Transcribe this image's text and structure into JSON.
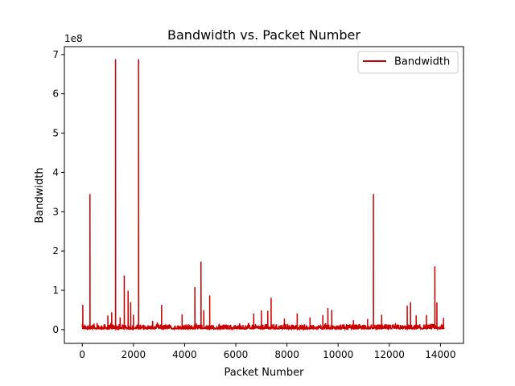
{
  "chart_data": {
    "type": "line",
    "title": "Bandwidth vs. Packet Number",
    "xlabel": "Packet Number",
    "ylabel": "Bandwidth",
    "y_offset_label": "1e8",
    "y_scale_factor": 100000000,
    "xlim": [
      -700,
      14900
    ],
    "ylim": [
      -0.35,
      7.2
    ],
    "x_ticks": [
      0,
      2000,
      4000,
      6000,
      8000,
      10000,
      12000,
      14000
    ],
    "x_tick_labels": [
      "0",
      "2000",
      "4000",
      "6000",
      "8000",
      "10000",
      "12000",
      "14000"
    ],
    "y_ticks": [
      0,
      1,
      2,
      3,
      4,
      5,
      6,
      7
    ],
    "y_tick_labels": [
      "0",
      "1",
      "2",
      "3",
      "4",
      "5",
      "6",
      "7"
    ],
    "grid": false,
    "legend_position": "top-right",
    "series": [
      {
        "name": "Bandwidth",
        "color": "#cc0000",
        "x_range": [
          0,
          14150
        ],
        "baseline": 0.02,
        "noise_max": 0.12,
        "spikes": [
          {
            "x": 20,
            "y": 0.63
          },
          {
            "x": 300,
            "y": 3.45
          },
          {
            "x": 1000,
            "y": 0.36
          },
          {
            "x": 1150,
            "y": 0.44
          },
          {
            "x": 1300,
            "y": 6.88
          },
          {
            "x": 1480,
            "y": 0.31
          },
          {
            "x": 1640,
            "y": 1.38
          },
          {
            "x": 1790,
            "y": 0.99
          },
          {
            "x": 1890,
            "y": 0.7
          },
          {
            "x": 2000,
            "y": 0.38
          },
          {
            "x": 2200,
            "y": 6.88
          },
          {
            "x": 3100,
            "y": 0.63
          },
          {
            "x": 3900,
            "y": 0.39
          },
          {
            "x": 4400,
            "y": 1.08
          },
          {
            "x": 4640,
            "y": 1.73
          },
          {
            "x": 4750,
            "y": 0.49
          },
          {
            "x": 4980,
            "y": 0.87
          },
          {
            "x": 6150,
            "y": 0.16
          },
          {
            "x": 6700,
            "y": 0.41
          },
          {
            "x": 7000,
            "y": 0.49
          },
          {
            "x": 7250,
            "y": 0.48
          },
          {
            "x": 7380,
            "y": 0.81
          },
          {
            "x": 7900,
            "y": 0.28
          },
          {
            "x": 8400,
            "y": 0.41
          },
          {
            "x": 8900,
            "y": 0.31
          },
          {
            "x": 9400,
            "y": 0.37
          },
          {
            "x": 9600,
            "y": 0.55
          },
          {
            "x": 9750,
            "y": 0.5
          },
          {
            "x": 10600,
            "y": 0.24
          },
          {
            "x": 11150,
            "y": 0.27
          },
          {
            "x": 11380,
            "y": 3.45
          },
          {
            "x": 11700,
            "y": 0.38
          },
          {
            "x": 12700,
            "y": 0.61
          },
          {
            "x": 12830,
            "y": 0.7
          },
          {
            "x": 13050,
            "y": 0.36
          },
          {
            "x": 13450,
            "y": 0.37
          },
          {
            "x": 13780,
            "y": 1.61
          },
          {
            "x": 13860,
            "y": 0.69
          },
          {
            "x": 14120,
            "y": 0.3
          }
        ]
      }
    ]
  }
}
